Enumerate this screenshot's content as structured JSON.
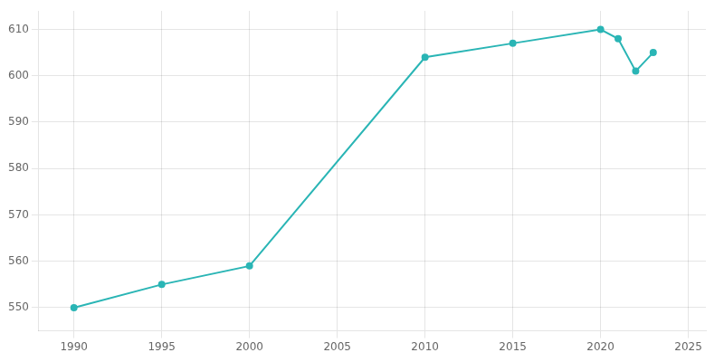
{
  "chart_data": {
    "type": "line",
    "x": [
      1990,
      1995,
      2000,
      2010,
      2015,
      2020,
      2021,
      2022,
      2023
    ],
    "values": [
      550,
      555,
      559,
      604,
      607,
      610,
      608,
      601,
      605
    ],
    "color": "#2ab5b5",
    "marker": "circle",
    "xlim": [
      1988,
      2026
    ],
    "ylim": [
      545,
      614
    ],
    "xticks": [
      1990,
      1995,
      2000,
      2005,
      2010,
      2015,
      2020,
      2025
    ],
    "yticks": [
      550,
      560,
      570,
      580,
      590,
      600,
      610
    ],
    "grid": true
  }
}
